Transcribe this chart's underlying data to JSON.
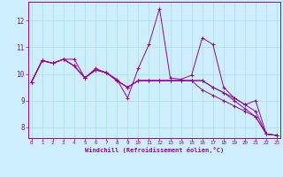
{
  "xlabel": "Windchill (Refroidissement éolien,°C)",
  "bg_color": "#cceeff",
  "line_color": "#990099",
  "grid_color": "#aadddd",
  "xticks": [
    0,
    1,
    2,
    3,
    4,
    5,
    6,
    7,
    8,
    9,
    10,
    11,
    12,
    13,
    14,
    15,
    16,
    17,
    18,
    19,
    20,
    21,
    22,
    23
  ],
  "yticks": [
    8,
    9,
    10,
    11,
    12
  ],
  "xlim": [
    -0.3,
    23.3
  ],
  "ylim": [
    7.6,
    12.7
  ],
  "series": [
    [
      9.7,
      10.5,
      10.4,
      10.55,
      10.55,
      9.85,
      10.2,
      10.05,
      9.8,
      9.1,
      10.2,
      11.1,
      12.45,
      9.85,
      9.8,
      9.95,
      11.35,
      11.1,
      9.5,
      9.1,
      8.85,
      9.0,
      7.75,
      7.7
    ],
    [
      9.7,
      10.5,
      10.4,
      10.55,
      10.3,
      9.85,
      10.15,
      10.05,
      9.75,
      9.5,
      9.75,
      9.75,
      9.75,
      9.75,
      9.75,
      9.75,
      9.75,
      9.5,
      9.3,
      9.1,
      8.85,
      8.6,
      7.75,
      7.7
    ],
    [
      9.7,
      10.5,
      10.4,
      10.55,
      10.3,
      9.85,
      10.15,
      10.05,
      9.75,
      9.5,
      9.75,
      9.75,
      9.75,
      9.75,
      9.75,
      9.75,
      9.4,
      9.2,
      9.0,
      8.8,
      8.6,
      8.4,
      7.75,
      7.7
    ],
    [
      9.7,
      10.5,
      10.4,
      10.55,
      10.3,
      9.85,
      10.15,
      10.05,
      9.75,
      9.5,
      9.75,
      9.75,
      9.75,
      9.75,
      9.75,
      9.75,
      9.75,
      9.5,
      9.3,
      9.0,
      8.7,
      8.4,
      7.75,
      7.7
    ]
  ]
}
